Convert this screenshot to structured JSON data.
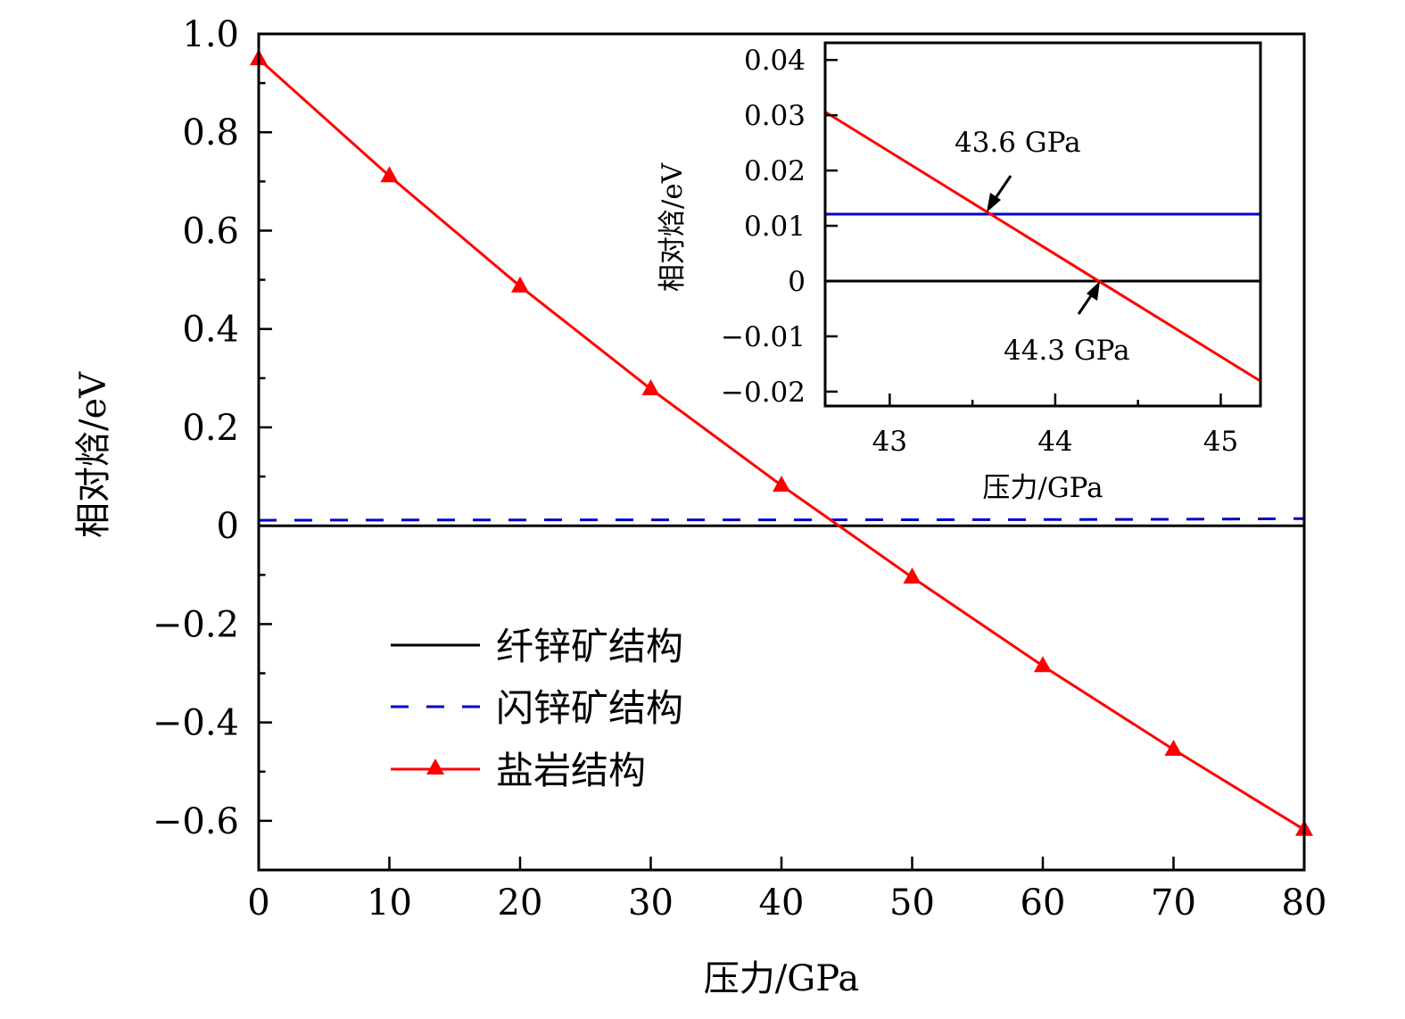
{
  "chart_data": [
    {
      "id": "main",
      "type": "line",
      "title": "",
      "xlabel": "压力/GPa",
      "ylabel": "相对焓/eV",
      "xlim": [
        0,
        80
      ],
      "ylim": [
        -0.7,
        1.0
      ],
      "xticks": [
        0,
        10,
        20,
        30,
        40,
        50,
        60,
        70,
        80
      ],
      "xtick_labels": [
        "0",
        "10",
        "20",
        "30",
        "40",
        "50",
        "60",
        "70",
        "80"
      ],
      "yticks": [
        1.0,
        0.8,
        0.6,
        0.4,
        0.2,
        0,
        -0.2,
        -0.4,
        -0.6
      ],
      "ytick_labels": [
        "1.0",
        "0.8",
        "0.6",
        "0.4",
        "0.2",
        "0",
        "−0.2",
        "−0.4",
        "−0.6"
      ],
      "grid": false,
      "legend_position": "bottom-left",
      "series": [
        {
          "name": "纤锌矿结构",
          "style": "solid",
          "color": "#000000",
          "marker": "none",
          "x": [
            0,
            80
          ],
          "y": [
            0,
            0
          ]
        },
        {
          "name": "闪锌矿结构",
          "style": "dashed",
          "color": "#0000cc",
          "marker": "none",
          "x": [
            0,
            10,
            20,
            30,
            40,
            50,
            60,
            70,
            80
          ],
          "y": [
            0.011,
            0.0115,
            0.0118,
            0.012,
            0.012,
            0.0122,
            0.0125,
            0.013,
            0.0145
          ]
        },
        {
          "name": "盐岩结构",
          "style": "solid",
          "color": "#ff0000",
          "marker": "triangle",
          "x": [
            0,
            10,
            20,
            30,
            40,
            50,
            60,
            70,
            80
          ],
          "y": [
            0.949,
            0.711,
            0.487,
            0.278,
            0.082,
            -0.105,
            -0.285,
            -0.455,
            -0.618
          ]
        }
      ]
    },
    {
      "id": "inset",
      "type": "line",
      "title": "",
      "xlabel": "压力/GPa",
      "ylabel": "相对焓/eV",
      "xlim": [
        42.61,
        45.24
      ],
      "ylim": [
        -0.0226,
        0.0431
      ],
      "xticks": [
        43,
        44,
        45
      ],
      "xtick_labels": [
        "43",
        "44",
        "45"
      ],
      "xminor": [
        43.5,
        44.5
      ],
      "yticks": [
        0.04,
        0.03,
        0.02,
        0.01,
        0,
        -0.01,
        -0.02
      ],
      "ytick_labels": [
        "0.04",
        "0.03",
        "0.02",
        "0.01",
        "0",
        "−0.01",
        "−0.02"
      ],
      "grid": false,
      "series": [
        {
          "name": "纤锌矿结构",
          "style": "solid",
          "color": "#000000",
          "x": [
            42.61,
            45.24
          ],
          "y": [
            0,
            0
          ]
        },
        {
          "name": "闪锌矿结构",
          "style": "solid",
          "color": "#0000cc",
          "x": [
            42.61,
            45.24
          ],
          "y": [
            0.0121,
            0.0121
          ]
        },
        {
          "name": "盐岩结构",
          "style": "solid",
          "color": "#ff0000",
          "x": [
            42.61,
            45.24
          ],
          "y": [
            0.0306,
            -0.0181
          ]
        }
      ],
      "annotations": [
        {
          "text": "43.6 GPa",
          "x": 43.6,
          "y": 0.0121,
          "arrow_from": "upper-right"
        },
        {
          "text": "44.3 GPa",
          "x": 44.3,
          "y": 0,
          "arrow_from": "lower-left"
        }
      ]
    }
  ]
}
